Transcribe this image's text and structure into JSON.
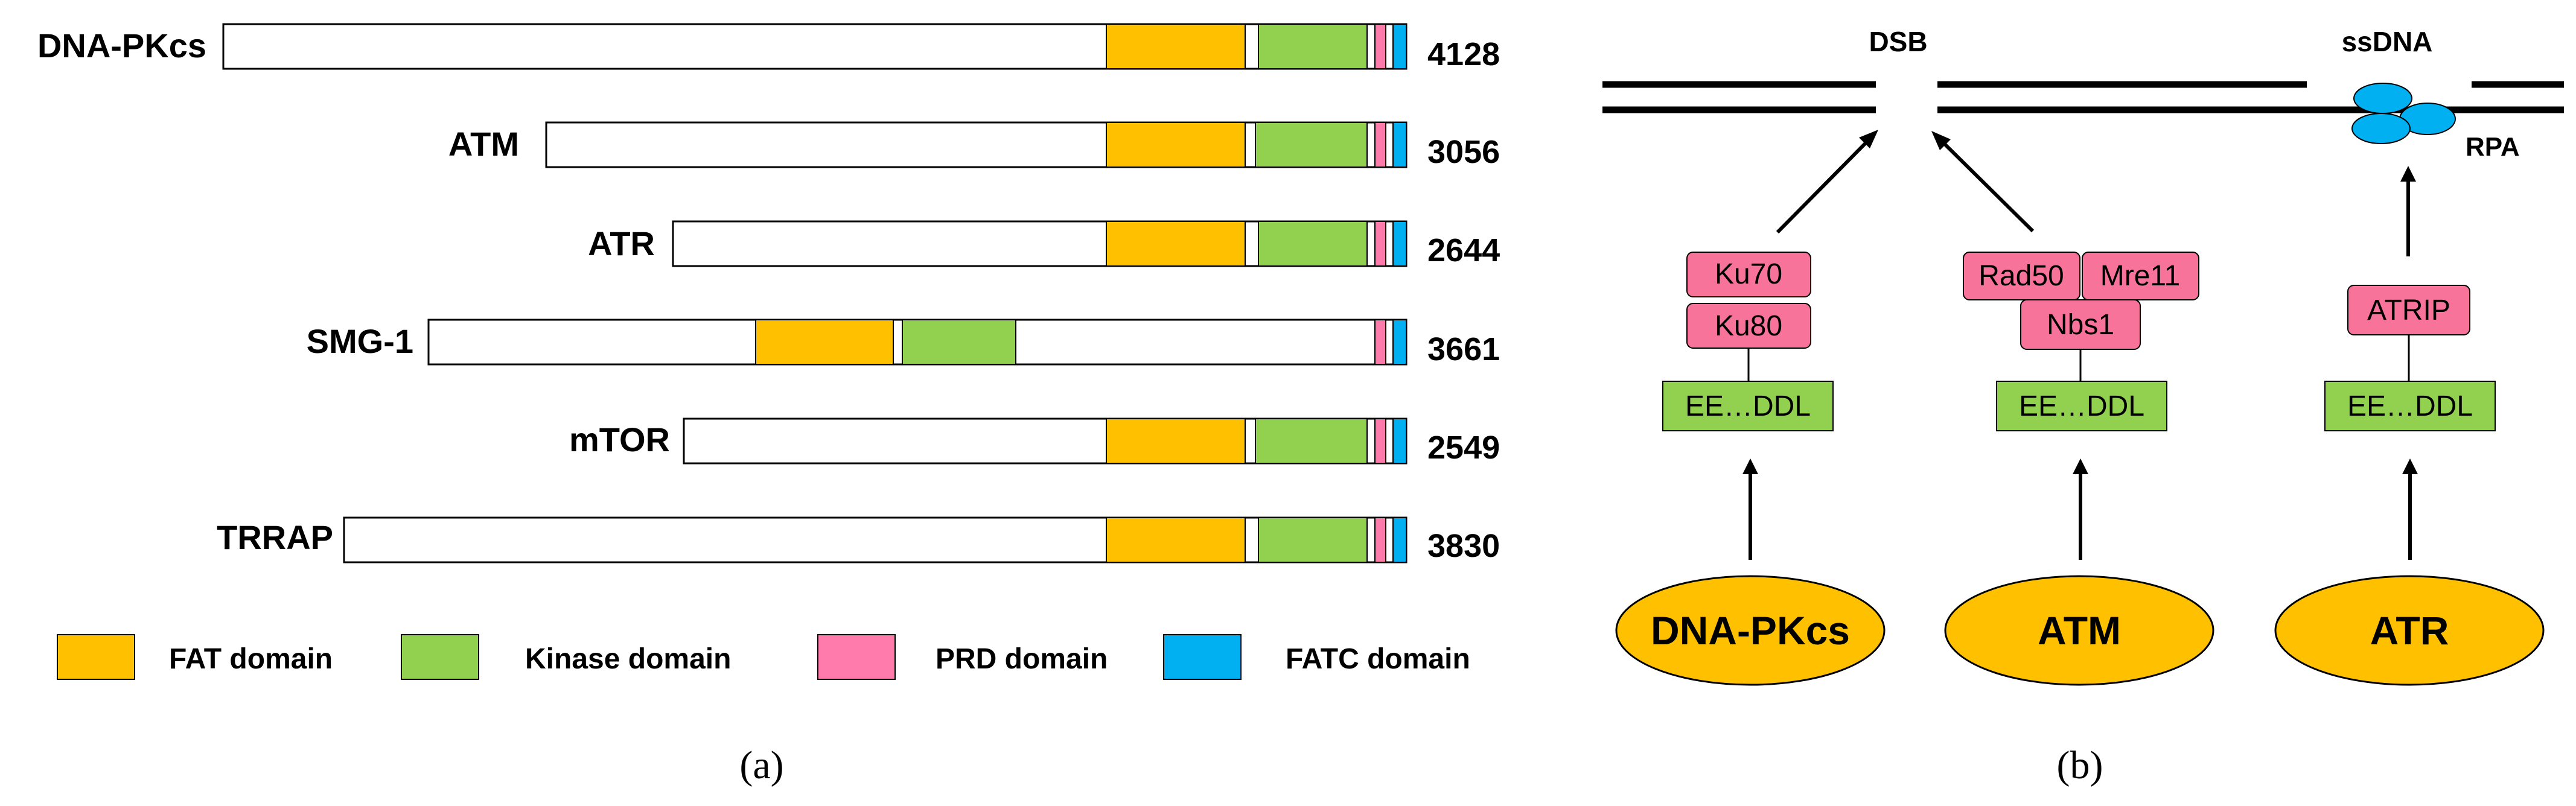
{
  "colors": {
    "fat": "#FFC000",
    "kinase": "#92D050",
    "prd": "#FF7BAC",
    "fatc": "#00B0F0",
    "kinase_box": "#92D050",
    "partner_box": "#F7739A",
    "kinase_ellipse": "#FFC000"
  },
  "panel_a": {
    "proteins": [
      {
        "name": "DNA-PKcs",
        "length": "4128"
      },
      {
        "name": "ATM",
        "length": "3056"
      },
      {
        "name": "ATR",
        "length": "2644"
      },
      {
        "name": "SMG-1",
        "length": "3661"
      },
      {
        "name": "mTOR",
        "length": "2549"
      },
      {
        "name": "TRRAP",
        "length": "3830"
      }
    ],
    "legend": [
      {
        "label": "FAT domain",
        "color_key": "fat"
      },
      {
        "label": "Kinase domain",
        "color_key": "kinase"
      },
      {
        "label": "PRD domain",
        "color_key": "prd"
      },
      {
        "label": "FATC domain",
        "color_key": "fatc"
      }
    ],
    "panel_label": "(a)"
  },
  "panel_b": {
    "dsb_label": "DSB",
    "ssdna_label": "ssDNA",
    "rpa_label": "RPA",
    "kinases": [
      {
        "name": "DNA-PKcs",
        "partners": [
          "Ku70",
          "Ku80"
        ],
        "motif": "EE…DDL"
      },
      {
        "name": "ATM",
        "partners": [
          "Rad50",
          "Mre11",
          "Nbs1"
        ],
        "motif": "EE…DDL"
      },
      {
        "name": "ATR",
        "partners": [
          "ATRIP"
        ],
        "motif": "EE…DDL"
      }
    ],
    "panel_label": "(b)"
  }
}
